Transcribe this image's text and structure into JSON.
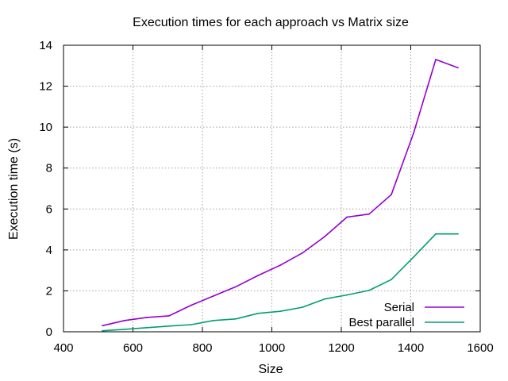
{
  "chart_data": {
    "type": "line",
    "title": "Execution times for each approach vs Matrix size",
    "xlabel": "Size",
    "ylabel": "Execution time (s)",
    "xlim": [
      400,
      1600
    ],
    "ylim": [
      0,
      14
    ],
    "xticks": [
      400,
      600,
      800,
      1000,
      1200,
      1400,
      1600
    ],
    "yticks": [
      0,
      2,
      4,
      6,
      8,
      10,
      12,
      14
    ],
    "grid": true,
    "legend_position": "bottom-right",
    "series": [
      {
        "name": "Serial",
        "color": "#9400d3",
        "x": [
          512,
          576,
          640,
          704,
          768,
          832,
          896,
          960,
          1024,
          1088,
          1152,
          1216,
          1280,
          1344,
          1408,
          1472,
          1536
        ],
        "y": [
          0.3,
          0.55,
          0.7,
          0.78,
          1.3,
          1.75,
          2.2,
          2.75,
          3.25,
          3.85,
          4.65,
          5.6,
          5.75,
          6.7,
          9.7,
          13.3,
          12.9
        ]
      },
      {
        "name": "Best parallel",
        "color": "#009e73",
        "x": [
          512,
          576,
          640,
          704,
          768,
          832,
          896,
          960,
          1024,
          1088,
          1152,
          1216,
          1280,
          1344,
          1408,
          1472,
          1536
        ],
        "y": [
          0.05,
          0.12,
          0.2,
          0.28,
          0.35,
          0.55,
          0.63,
          0.9,
          1.0,
          1.2,
          1.6,
          1.8,
          2.02,
          2.55,
          3.65,
          4.78,
          4.78
        ]
      }
    ]
  }
}
